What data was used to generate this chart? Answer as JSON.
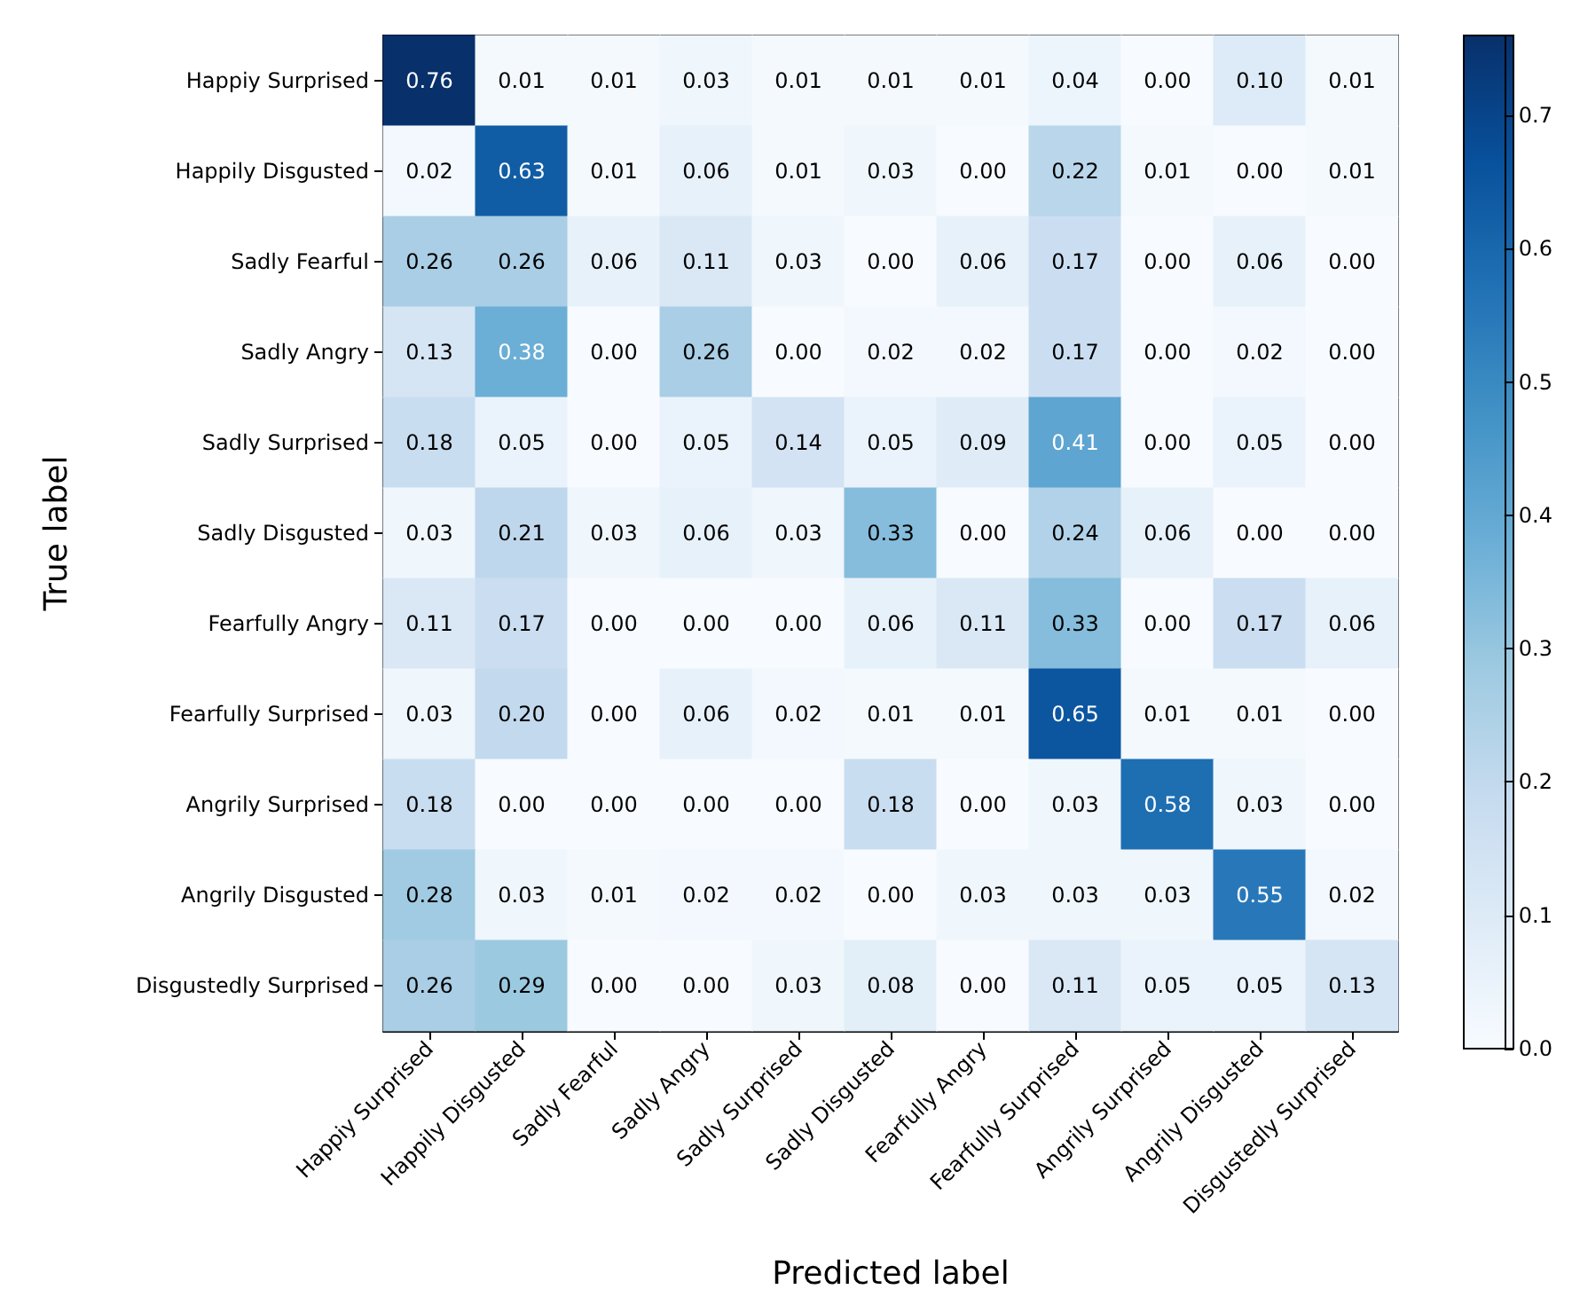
{
  "chart_data": {
    "type": "heatmap",
    "xlabel": "Predicted label",
    "ylabel": "True label",
    "categories": [
      "Happiy Surprised",
      "Happily Disgusted",
      "Sadly Fearful",
      "Sadly Angry",
      "Sadly Surprised",
      "Sadly Disgusted",
      "Fearfully Angry",
      "Fearfully Surprised",
      "Angrily Surprised",
      "Angrily Disgusted",
      "Disgustedly Surprised"
    ],
    "y_categories": [
      "Happiy Surprised",
      "Happily Disgusted",
      "Sadly Fearful",
      "Sadly Angry",
      "Sadly Surprised",
      "Sadly Disgusted",
      "Fearfully Angry",
      "Fearfully Surprised",
      "Angrily Surprised",
      "Angrily Disgusted",
      "Disgustedly Surprised"
    ],
    "cells": [
      [
        0.76,
        0.01,
        0.01,
        0.03,
        0.01,
        0.01,
        0.01,
        0.04,
        0.0,
        0.1,
        0.01
      ],
      [
        0.02,
        0.63,
        0.01,
        0.06,
        0.01,
        0.03,
        0.0,
        0.22,
        0.01,
        0.0,
        0.01
      ],
      [
        0.26,
        0.26,
        0.06,
        0.11,
        0.03,
        0.0,
        0.06,
        0.17,
        0.0,
        0.06,
        0.0
      ],
      [
        0.13,
        0.38,
        0.0,
        0.26,
        0.0,
        0.02,
        0.02,
        0.17,
        0.0,
        0.02,
        0.0
      ],
      [
        0.18,
        0.05,
        0.0,
        0.05,
        0.14,
        0.05,
        0.09,
        0.41,
        0.0,
        0.05,
        0.0
      ],
      [
        0.03,
        0.21,
        0.03,
        0.06,
        0.03,
        0.33,
        0.0,
        0.24,
        0.06,
        0.0,
        0.0
      ],
      [
        0.11,
        0.17,
        0.0,
        0.0,
        0.0,
        0.06,
        0.11,
        0.33,
        0.0,
        0.17,
        0.06
      ],
      [
        0.03,
        0.2,
        0.0,
        0.06,
        0.02,
        0.01,
        0.01,
        0.65,
        0.01,
        0.01,
        0.0
      ],
      [
        0.18,
        0.0,
        0.0,
        0.0,
        0.0,
        0.18,
        0.0,
        0.03,
        0.58,
        0.03,
        0.0
      ],
      [
        0.28,
        0.03,
        0.01,
        0.02,
        0.02,
        0.0,
        0.03,
        0.03,
        0.03,
        0.55,
        0.02
      ],
      [
        0.26,
        0.29,
        0.0,
        0.0,
        0.03,
        0.08,
        0.0,
        0.11,
        0.05,
        0.05,
        0.13
      ]
    ],
    "cell_labels": [
      [
        "0.76",
        "0.01",
        "0.01",
        "0.03",
        "0.01",
        "0.01",
        "0.01",
        "0.04",
        "0.00",
        "0.10",
        "0.01"
      ],
      [
        "0.02",
        "0.63",
        "0.01",
        "0.06",
        "0.01",
        "0.03",
        "0.00",
        "0.22",
        "0.01",
        "0.00",
        "0.01"
      ],
      [
        "0.26",
        "0.26",
        "0.06",
        "0.11",
        "0.03",
        "0.00",
        "0.06",
        "0.17",
        "0.00",
        "0.06",
        "0.00"
      ],
      [
        "0.13",
        "0.38",
        "0.00",
        "0.26",
        "0.00",
        "0.02",
        "0.02",
        "0.17",
        "0.00",
        "0.02",
        "0.00"
      ],
      [
        "0.18",
        "0.05",
        "0.00",
        "0.05",
        "0.14",
        "0.05",
        "0.09",
        "0.41",
        "0.00",
        "0.05",
        "0.00"
      ],
      [
        "0.03",
        "0.21",
        "0.03",
        "0.06",
        "0.03",
        "0.33",
        "0.00",
        "0.24",
        "0.06",
        "0.00",
        "0.00"
      ],
      [
        "0.11",
        "0.17",
        "0.00",
        "0.00",
        "0.00",
        "0.06",
        "0.11",
        "0.33",
        "0.00",
        "0.17",
        "0.06"
      ],
      [
        "0.03",
        "0.20",
        "0.00",
        "0.06",
        "0.02",
        "0.01",
        "0.01",
        "0.65",
        "0.01",
        "0.01",
        "0.00"
      ],
      [
        "0.18",
        "0.00",
        "0.00",
        "0.00",
        "0.00",
        "0.18",
        "0.00",
        "0.03",
        "0.58",
        "0.03",
        "0.00"
      ],
      [
        "0.28",
        "0.03",
        "0.01",
        "0.02",
        "0.02",
        "0.00",
        "0.03",
        "0.03",
        "0.03",
        "0.55",
        "0.02"
      ],
      [
        "0.26",
        "0.29",
        "0.00",
        "0.00",
        "0.03",
        "0.08",
        "0.00",
        "0.11",
        "0.05",
        "0.05",
        "0.13"
      ]
    ],
    "clim": [
      0,
      0.76
    ],
    "cticks": [
      {
        "value": 0,
        "label": "0.0"
      },
      0.1,
      0.2,
      0.3,
      0.4,
      0.5,
      0.6,
      0.7
    ],
    "data_labels": true
  }
}
